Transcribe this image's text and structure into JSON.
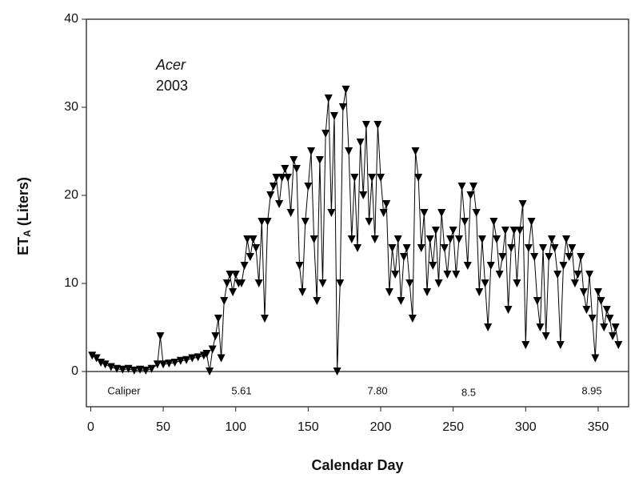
{
  "chart_data": {
    "type": "line",
    "xlabel": "Calendar Day",
    "ylabel": "ET",
    "ylabel_subscript": "A",
    "ylabel_suffix": "(Liters)",
    "annotations": [
      "Acer",
      "2003"
    ],
    "caliper_labels": [
      "Caliper",
      "5.61",
      "7.80",
      "8.5",
      "8.95"
    ],
    "color": "#000000",
    "marker": "triangle-down",
    "xlim": [
      -3,
      371
    ],
    "xticks": [
      0,
      50,
      100,
      150,
      200,
      250,
      300,
      350
    ],
    "ylim": [
      -4,
      40
    ],
    "yticks": [
      0,
      10,
      20,
      30,
      40
    ],
    "x": [
      1,
      4,
      7,
      10,
      14,
      18,
      22,
      26,
      30,
      34,
      38,
      42,
      46,
      48,
      50,
      54,
      58,
      62,
      66,
      70,
      74,
      78,
      80,
      82,
      84,
      86,
      88,
      90,
      92,
      94,
      96,
      98,
      100,
      102,
      104,
      106,
      108,
      110,
      112,
      114,
      116,
      118,
      120,
      122,
      124,
      126,
      128,
      130,
      132,
      134,
      136,
      138,
      140,
      142,
      144,
      146,
      148,
      150,
      152,
      154,
      156,
      158,
      160,
      162,
      164,
      166,
      168,
      170,
      172,
      174,
      176,
      178,
      180,
      182,
      184,
      186,
      188,
      190,
      192,
      194,
      196,
      198,
      200,
      202,
      204,
      206,
      208,
      210,
      212,
      214,
      216,
      218,
      220,
      222,
      224,
      226,
      228,
      230,
      232,
      234,
      236,
      238,
      240,
      242,
      244,
      246,
      248,
      250,
      252,
      254,
      256,
      258,
      260,
      262,
      264,
      266,
      268,
      270,
      272,
      274,
      276,
      278,
      280,
      282,
      284,
      286,
      288,
      290,
      292,
      294,
      296,
      298,
      300,
      302,
      304,
      306,
      308,
      310,
      312,
      314,
      316,
      318,
      320,
      322,
      324,
      326,
      328,
      330,
      332,
      334,
      336,
      338,
      340,
      342,
      344,
      346,
      348,
      350,
      352,
      354,
      356,
      358,
      360,
      362,
      364
    ],
    "values": [
      1.8,
      1.5,
      1.0,
      0.8,
      0.5,
      0.3,
      0.2,
      0.3,
      0.1,
      0.2,
      0.1,
      0.3,
      0.8,
      4.0,
      0.8,
      0.9,
      1.0,
      1.2,
      1.3,
      1.5,
      1.6,
      1.8,
      2.0,
      0.0,
      2.5,
      4,
      6,
      1.5,
      8,
      10,
      11,
      9,
      11,
      10,
      10,
      12,
      15,
      13,
      15,
      14,
      10,
      17,
      6,
      17,
      20,
      21,
      22,
      19,
      22,
      23,
      22,
      18,
      24,
      23,
      12,
      9,
      17,
      21,
      25,
      15,
      8,
      24,
      10,
      27,
      31,
      18,
      29,
      0,
      10,
      30,
      32,
      25,
      15,
      22,
      14,
      26,
      20,
      28,
      17,
      22,
      15,
      28,
      22,
      18,
      19,
      9,
      14,
      11,
      15,
      8,
      13,
      14,
      10,
      6,
      25,
      22,
      14,
      18,
      9,
      15,
      12,
      16,
      10,
      18,
      14,
      11,
      15,
      16,
      11,
      15,
      21,
      17,
      12,
      20,
      21,
      18,
      9,
      15,
      10,
      5,
      12,
      17,
      15,
      11,
      13,
      16,
      7,
      14,
      16,
      10,
      16,
      19,
      3,
      14,
      17,
      13,
      8,
      5,
      14,
      4,
      13,
      15,
      14,
      11,
      3,
      12,
      15,
      13,
      14,
      10,
      11,
      13,
      9,
      7,
      11,
      6,
      1.5,
      9,
      8,
      5,
      7,
      6,
      4,
      5,
      3
    ]
  }
}
